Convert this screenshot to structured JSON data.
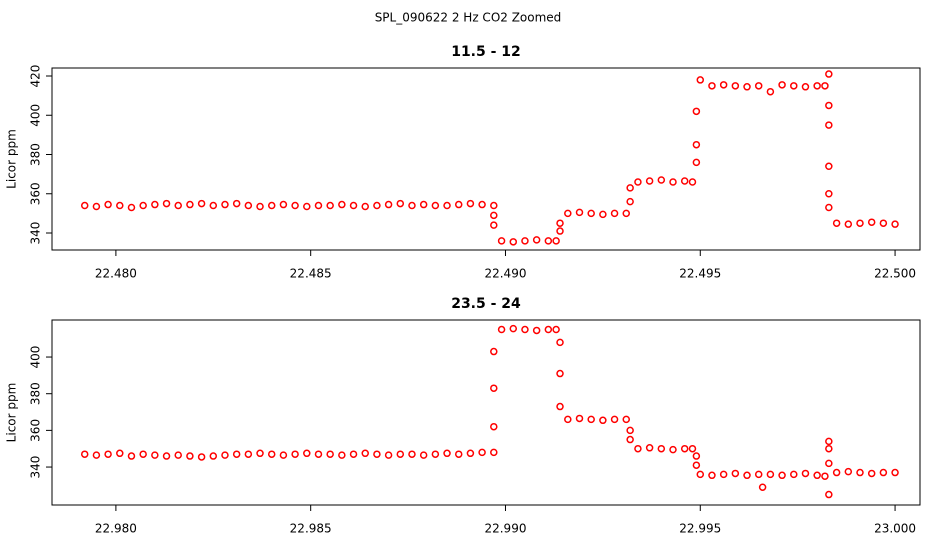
{
  "title": "SPL_090622  2 Hz CO2 Zoomed",
  "chart_data": [
    {
      "type": "scatter",
      "title": "11.5 - 12",
      "y_label": "Licor ppm",
      "color": "#ff0000",
      "x": [
        22.4792,
        22.4795,
        22.4798,
        22.4801,
        22.4804,
        22.4807,
        22.481,
        22.4813,
        22.4816,
        22.4819,
        22.4822,
        22.4825,
        22.4828,
        22.4831,
        22.4834,
        22.4837,
        22.484,
        22.4843,
        22.4846,
        22.4849,
        22.4852,
        22.4855,
        22.4858,
        22.4861,
        22.4864,
        22.4867,
        22.487,
        22.4873,
        22.4876,
        22.4879,
        22.4882,
        22.4885,
        22.4888,
        22.4891,
        22.4894,
        22.4897,
        22.4897,
        22.4897,
        22.4899,
        22.4902,
        22.4905,
        22.4908,
        22.4911,
        22.4913,
        22.4914,
        22.4914,
        22.4916,
        22.4919,
        22.4922,
        22.4925,
        22.4928,
        22.4931,
        22.4932,
        22.4932,
        22.4934,
        22.4937,
        22.494,
        22.4943,
        22.4946,
        22.4948,
        22.4949,
        22.4949,
        22.4949,
        22.495,
        22.4953,
        22.4956,
        22.4959,
        22.4962,
        22.4965,
        22.4968,
        22.4971,
        22.4974,
        22.4977,
        22.498,
        22.4982,
        22.4983,
        22.4983,
        22.4983,
        22.4983,
        22.4983,
        22.4983,
        22.4985,
        22.4988,
        22.4991,
        22.4994,
        22.4997,
        22.5
      ],
      "values": [
        354,
        353.5,
        354.5,
        354,
        353,
        354,
        354.5,
        355,
        354,
        354.5,
        355,
        354,
        354.5,
        355,
        354,
        353.5,
        354,
        354.5,
        354,
        353.5,
        354,
        354,
        354.5,
        354,
        353.5,
        354,
        354.5,
        355,
        354,
        354.5,
        354,
        354,
        354.5,
        355,
        354.5,
        354,
        349,
        344,
        336,
        335.5,
        336,
        336.5,
        336,
        336,
        341,
        345,
        350,
        350.5,
        350,
        349.5,
        350,
        350,
        356,
        363,
        366,
        366.5,
        367,
        366,
        366.5,
        366,
        376,
        385,
        402,
        418,
        415,
        415.5,
        415,
        414.5,
        415,
        412,
        415.5,
        415,
        414.5,
        415,
        415,
        421,
        405,
        395,
        374,
        360,
        353,
        345,
        344.5,
        345,
        345.5,
        345,
        344.5
      ],
      "xlim": [
        22.47836,
        22.50064
      ],
      "ylim": [
        331.34,
        424.08
      ],
      "xticks": [
        {
          "value": 22.48,
          "label": "22.480"
        },
        {
          "value": 22.485,
          "label": "22.485"
        },
        {
          "value": 22.49,
          "label": "22.490"
        },
        {
          "value": 22.495,
          "label": "22.495"
        },
        {
          "value": 22.5,
          "label": "22.500"
        }
      ],
      "yticks": [
        340,
        360,
        380,
        400,
        420
      ]
    },
    {
      "type": "scatter",
      "title": "23.5 - 24",
      "y_label": "Licor ppm",
      "color": "#ff0000",
      "x": [
        22.9792,
        22.9795,
        22.9798,
        22.9801,
        22.9804,
        22.9807,
        22.981,
        22.9813,
        22.9816,
        22.9819,
        22.9822,
        22.9825,
        22.9828,
        22.9831,
        22.9834,
        22.9837,
        22.984,
        22.9843,
        22.9846,
        22.9849,
        22.9852,
        22.9855,
        22.9858,
        22.9861,
        22.9864,
        22.9867,
        22.987,
        22.9873,
        22.9876,
        22.9879,
        22.9882,
        22.9885,
        22.9888,
        22.9891,
        22.9894,
        22.9897,
        22.9897,
        22.9897,
        22.9897,
        22.9899,
        22.9902,
        22.9905,
        22.9908,
        22.9911,
        22.9913,
        22.9914,
        22.9914,
        22.9914,
        22.9916,
        22.9919,
        22.9922,
        22.9925,
        22.9928,
        22.9931,
        22.9932,
        22.9932,
        22.9934,
        22.9937,
        22.994,
        22.9943,
        22.9946,
        22.9948,
        22.9949,
        22.9949,
        22.995,
        22.9953,
        22.9956,
        22.9959,
        22.9962,
        22.9965,
        22.9966,
        22.9968,
        22.9971,
        22.9974,
        22.9977,
        22.998,
        22.9982,
        22.9983,
        22.9983,
        22.9983,
        22.9983,
        22.9985,
        22.9988,
        22.9991,
        22.9994,
        22.9997,
        23
      ],
      "values": [
        347,
        346.5,
        347,
        347.5,
        346,
        347,
        346.5,
        346,
        346.5,
        346,
        345.5,
        346,
        346.5,
        347,
        347,
        347.5,
        347,
        346.5,
        347,
        347.5,
        347,
        347,
        346.5,
        347,
        347.5,
        347,
        346.5,
        347,
        347,
        346.5,
        347,
        347.5,
        347,
        347.5,
        348,
        348,
        362,
        383,
        403,
        415,
        415.5,
        415,
        414.5,
        415,
        415,
        408,
        391,
        373,
        366,
        366.5,
        366,
        365.5,
        366,
        366,
        360,
        355,
        350,
        350.5,
        350,
        349.5,
        350,
        350,
        346,
        341,
        336,
        335.5,
        336,
        336.5,
        335.5,
        336,
        329,
        336,
        335.5,
        336,
        336.5,
        335.5,
        335,
        325,
        354,
        350,
        342,
        337,
        337.5,
        337,
        336.5,
        337,
        337
      ],
      "xlim": [
        22.97836,
        23.00064
      ],
      "ylim": [
        319.3,
        420.2
      ],
      "xticks": [
        {
          "value": 22.98,
          "label": "22.980"
        },
        {
          "value": 22.985,
          "label": "22.985"
        },
        {
          "value": 22.99,
          "label": "22.990"
        },
        {
          "value": 22.995,
          "label": "22.995"
        },
        {
          "value": 23,
          "label": "23.000"
        }
      ],
      "yticks": [
        340,
        360,
        380,
        400
      ]
    }
  ]
}
